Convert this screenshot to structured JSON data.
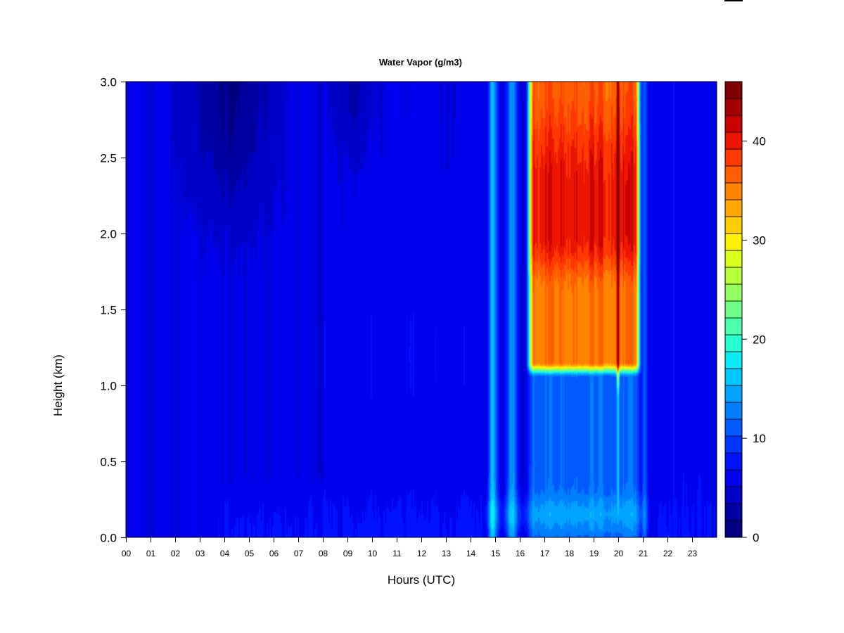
{
  "chart_data": {
    "type": "heatmap",
    "title": "Water Vapor (g/m3)",
    "xlabel": "Hours (UTC)",
    "ylabel": "Height (km)",
    "xlim": [
      0,
      24
    ],
    "ylim": [
      0.0,
      3.0
    ],
    "x_ticks": [
      {
        "value": 0,
        "label": "00"
      },
      {
        "value": 1,
        "label": "01"
      },
      {
        "value": 2,
        "label": "02"
      },
      {
        "value": 3,
        "label": "03"
      },
      {
        "value": 4,
        "label": "04"
      },
      {
        "value": 5,
        "label": "05"
      },
      {
        "value": 6,
        "label": "06"
      },
      {
        "value": 7,
        "label": "07"
      },
      {
        "value": 8,
        "label": "08"
      },
      {
        "value": 9,
        "label": "09"
      },
      {
        "value": 10,
        "label": "10"
      },
      {
        "value": 11,
        "label": "11"
      },
      {
        "value": 12,
        "label": "12"
      },
      {
        "value": 13,
        "label": "13"
      },
      {
        "value": 14,
        "label": "14"
      },
      {
        "value": 15,
        "label": "15"
      },
      {
        "value": 16,
        "label": "16"
      },
      {
        "value": 17,
        "label": "17"
      },
      {
        "value": 18,
        "label": "18"
      },
      {
        "value": 19,
        "label": "19"
      },
      {
        "value": 20,
        "label": "20"
      },
      {
        "value": 21,
        "label": "21"
      },
      {
        "value": 22,
        "label": "22"
      },
      {
        "value": 23,
        "label": "23"
      }
    ],
    "y_ticks": [
      {
        "value": 0.0,
        "label": "0.0"
      },
      {
        "value": 0.5,
        "label": "0.5"
      },
      {
        "value": 1.0,
        "label": "1.0"
      },
      {
        "value": 1.5,
        "label": "1.5"
      },
      {
        "value": 2.0,
        "label": "2.0"
      },
      {
        "value": 2.5,
        "label": "2.5"
      },
      {
        "value": 3.0,
        "label": "3.0"
      }
    ],
    "colorbar": {
      "range": [
        0,
        46
      ],
      "levels": [
        0,
        2,
        4,
        6,
        8,
        10,
        12,
        14,
        16,
        18,
        20,
        22,
        24,
        26,
        28,
        30,
        32,
        34,
        36,
        38,
        40,
        42,
        44,
        46
      ],
      "colors": [
        "#00007f",
        "#0000a3",
        "#0000c8",
        "#0000ed",
        "#0012ff",
        "#0036ff",
        "#005aff",
        "#0080ff",
        "#00a4ff",
        "#00c8ff",
        "#0aecf4",
        "#27ffd0",
        "#4dffaa",
        "#70ff87",
        "#93ff63",
        "#b7ff40",
        "#daff1c",
        "#fff200",
        "#ffcd00",
        "#ffa800",
        "#ff8400",
        "#ff5f00",
        "#ff3a00",
        "#ed1600",
        "#c80000",
        "#a30000",
        "#7f0000"
      ],
      "ticks": [
        {
          "value": 0,
          "label": "0"
        },
        {
          "value": 10,
          "label": "10"
        },
        {
          "value": 20,
          "label": "20"
        },
        {
          "value": 30,
          "label": "30"
        },
        {
          "value": 40,
          "label": "40"
        }
      ]
    }
  }
}
